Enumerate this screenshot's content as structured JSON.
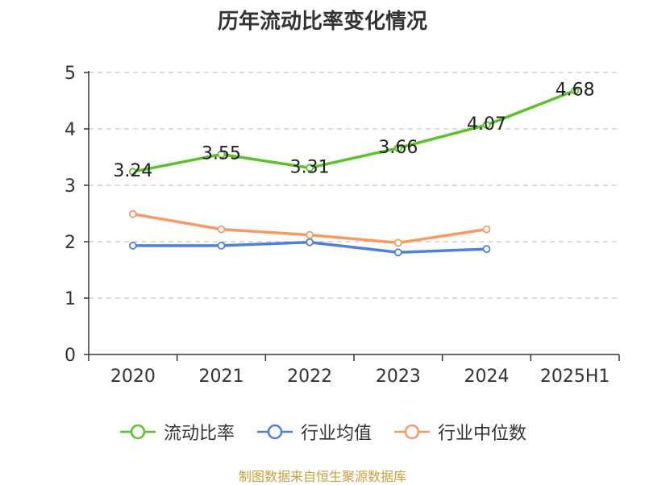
{
  "chart_data": {
    "type": "line",
    "title": "历年流动比率变化情况",
    "categories": [
      "2020",
      "2021",
      "2022",
      "2023",
      "2024",
      "2025H1"
    ],
    "y_ticks": [
      "0",
      "1",
      "2",
      "3",
      "4",
      "5"
    ],
    "ylim": [
      0,
      5
    ],
    "grid": true,
    "legend_position": "bottom",
    "series": [
      {
        "name": "流动比率",
        "color": "#5cc22c",
        "values": [
          3.24,
          3.55,
          3.31,
          3.66,
          4.07,
          4.68
        ],
        "labels": [
          "3.24",
          "3.55",
          "3.31",
          "3.66",
          "4.07",
          "4.68"
        ]
      },
      {
        "name": "行业均值",
        "color": "#4f81d9",
        "values": [
          1.93,
          1.93,
          1.99,
          1.81,
          1.87,
          null
        ]
      },
      {
        "name": "行业中位数",
        "color": "#f79a62",
        "values": [
          2.49,
          2.22,
          2.12,
          1.98,
          2.22,
          null
        ]
      }
    ]
  },
  "source_note": "制图数据来自恒生聚源数据库"
}
